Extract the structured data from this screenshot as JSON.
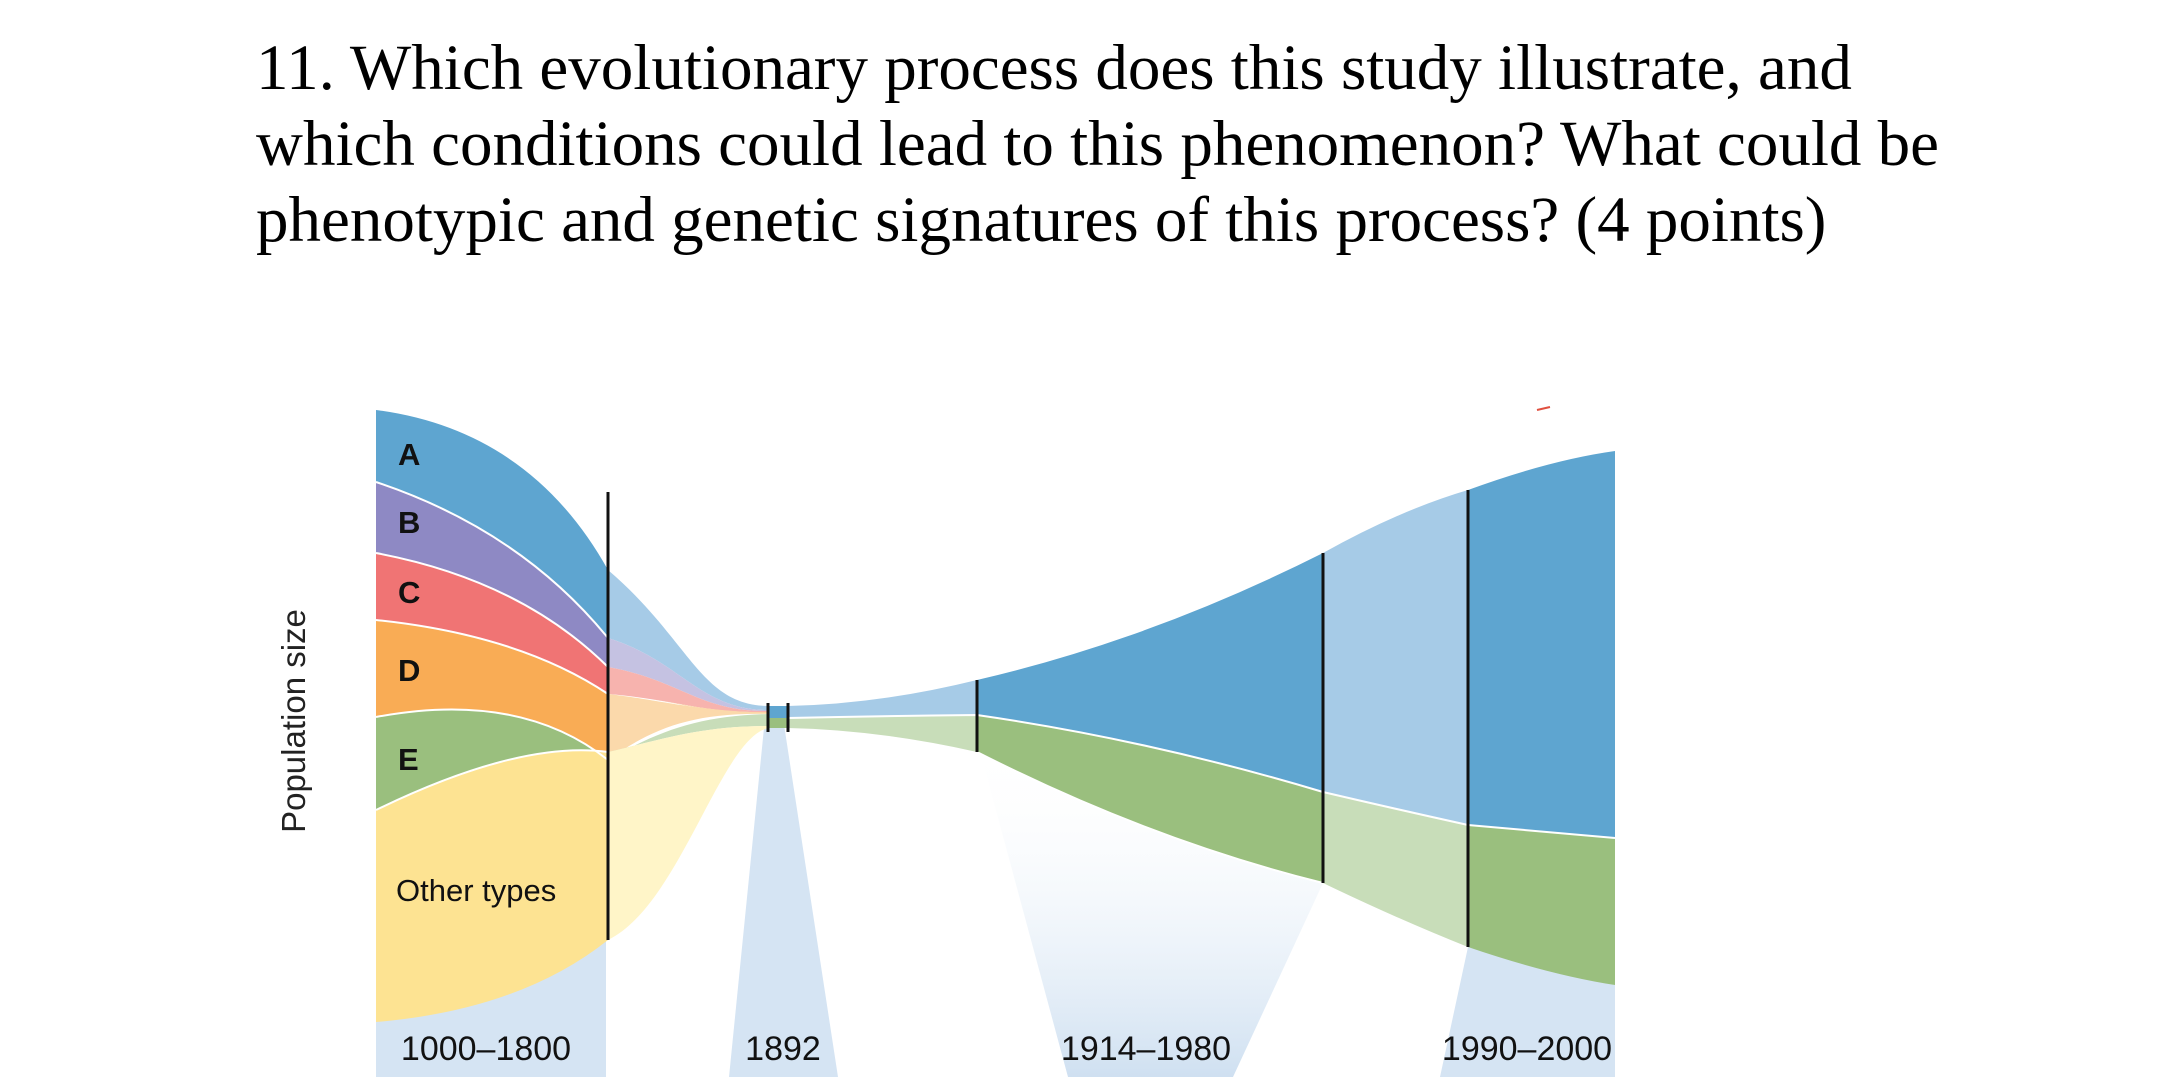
{
  "question": {
    "lines": [
      "11. Which evolutionary process does this study illustrate, and",
      "which conditions could lead to this phenomenon? What could be",
      "phenotypic and genetic signatures of this process? (4 points)"
    ]
  },
  "figure": {
    "y_axis_label": "Population size",
    "groups": [
      {
        "id": "A",
        "label": "A",
        "color": "#5ea5d0"
      },
      {
        "id": "B",
        "label": "B",
        "color": "#8e89c4"
      },
      {
        "id": "C",
        "label": "C",
        "color": "#f07474"
      },
      {
        "id": "D",
        "label": "D",
        "color": "#f9ac55"
      },
      {
        "id": "E",
        "label": "E",
        "color": "#9abf7e"
      },
      {
        "id": "other",
        "label": "Other types",
        "color": "#fde392"
      }
    ],
    "periods": [
      "1000–1800",
      "1892",
      "1914–1980",
      "1990–2000"
    ],
    "colors": {
      "transition_blue": "#a6cbe7",
      "transition_green": "#c8ddb9",
      "period_shade": "#d5e4f3",
      "divider": "#111111"
    }
  }
}
